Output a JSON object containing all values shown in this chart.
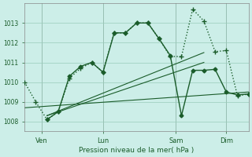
{
  "background_color": "#cceee8",
  "grid_color": "#99ccbb",
  "line_color": "#1a5c2a",
  "text_color": "#1a5c2a",
  "xlabel": "Pression niveau de la mer( hPa )",
  "ylim": [
    1007.5,
    1014.0
  ],
  "yticks": [
    1008,
    1009,
    1010,
    1011,
    1012,
    1013
  ],
  "xlim": [
    0,
    20
  ],
  "day_labels": [
    "Ven",
    "Lun",
    "Sam",
    "Dim"
  ],
  "day_positions": [
    1.5,
    7.0,
    13.5,
    18.0
  ],
  "series_dotted": {
    "x": [
      0,
      1,
      2,
      3,
      4,
      5,
      6,
      7,
      8,
      9,
      10,
      11,
      12,
      13,
      14,
      15,
      16,
      17,
      18,
      19,
      20
    ],
    "y": [
      1010.0,
      1009.0,
      1008.1,
      1008.5,
      1010.2,
      1010.7,
      1011.0,
      1010.5,
      1012.5,
      1012.5,
      1013.0,
      1013.0,
      1012.2,
      1011.3,
      1011.3,
      1013.7,
      1013.1,
      1011.55,
      1011.6,
      1009.3,
      1009.4
    ],
    "linestyle": ":",
    "marker": "+",
    "markersize": 4,
    "linewidth": 1.0
  },
  "series_solid": {
    "x": [
      2,
      3,
      4,
      5,
      6,
      7,
      8,
      9,
      10,
      11,
      12,
      13,
      14,
      15,
      16,
      17,
      18,
      19,
      20
    ],
    "y": [
      1008.1,
      1008.5,
      1010.3,
      1010.8,
      1011.0,
      1010.5,
      1012.5,
      1012.5,
      1013.0,
      1013.0,
      1012.2,
      1011.35,
      1008.3,
      1010.6,
      1010.6,
      1010.65,
      1009.5,
      1009.35,
      1009.4
    ],
    "linestyle": "-",
    "marker": "D",
    "markersize": 2.5,
    "linewidth": 1.0
  },
  "series_slow": {
    "x": [
      0,
      20
    ],
    "y": [
      1008.7,
      1009.5
    ],
    "linestyle": "-",
    "marker": "None",
    "linewidth": 0.8
  },
  "trend_line1": {
    "x": [
      2,
      16
    ],
    "y": [
      1008.3,
      1011.5
    ],
    "linestyle": "-",
    "linewidth": 0.8
  },
  "trend_line2": {
    "x": [
      2,
      16
    ],
    "y": [
      1008.3,
      1011.0
    ],
    "linestyle": "-",
    "linewidth": 0.8
  }
}
